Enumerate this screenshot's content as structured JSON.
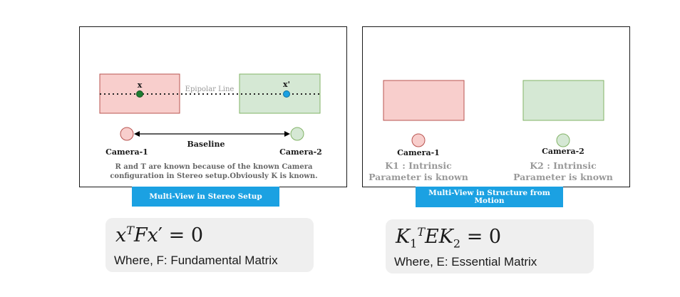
{
  "stereo": {
    "point_left": "x",
    "point_right": "x'",
    "epipolar_label": "Epipolar Line",
    "baseline_label": "Baseline",
    "camera1": "Camera-1",
    "camera2": "Camera-2",
    "note_line1": "R and T are known because of the known Camera",
    "note_line2": "configuration in Stereo setup.Obviously K is known.",
    "caption": "Multi-View in Stereo Setup"
  },
  "sfm": {
    "camera1": "Camera-1",
    "camera2": "Camera-2",
    "k1_line1": "K1 : Intrinsic",
    "k1_line2": "Parameter is known",
    "k2_line1": "K2 : Intrinsic",
    "k2_line2": "Parameter is known",
    "caption": "Multi-View in Structure from Motion"
  },
  "formula_left": {
    "equation": "x^T F x' = 0",
    "where": "Where, F: Fundamental Matrix"
  },
  "formula_right": {
    "equation": "K_1^T E K_2 = 0",
    "where": "Where, E: Essential Matrix"
  },
  "colors": {
    "red_fill": "#f8cecc",
    "red_stroke": "#b85450",
    "green_fill": "#d5e8d4",
    "green_stroke": "#82b366",
    "caption_blue": "#1ba1e2",
    "point_green": "#1e7d32",
    "point_blue": "#1ba1e2",
    "gray_text": "#999999"
  }
}
